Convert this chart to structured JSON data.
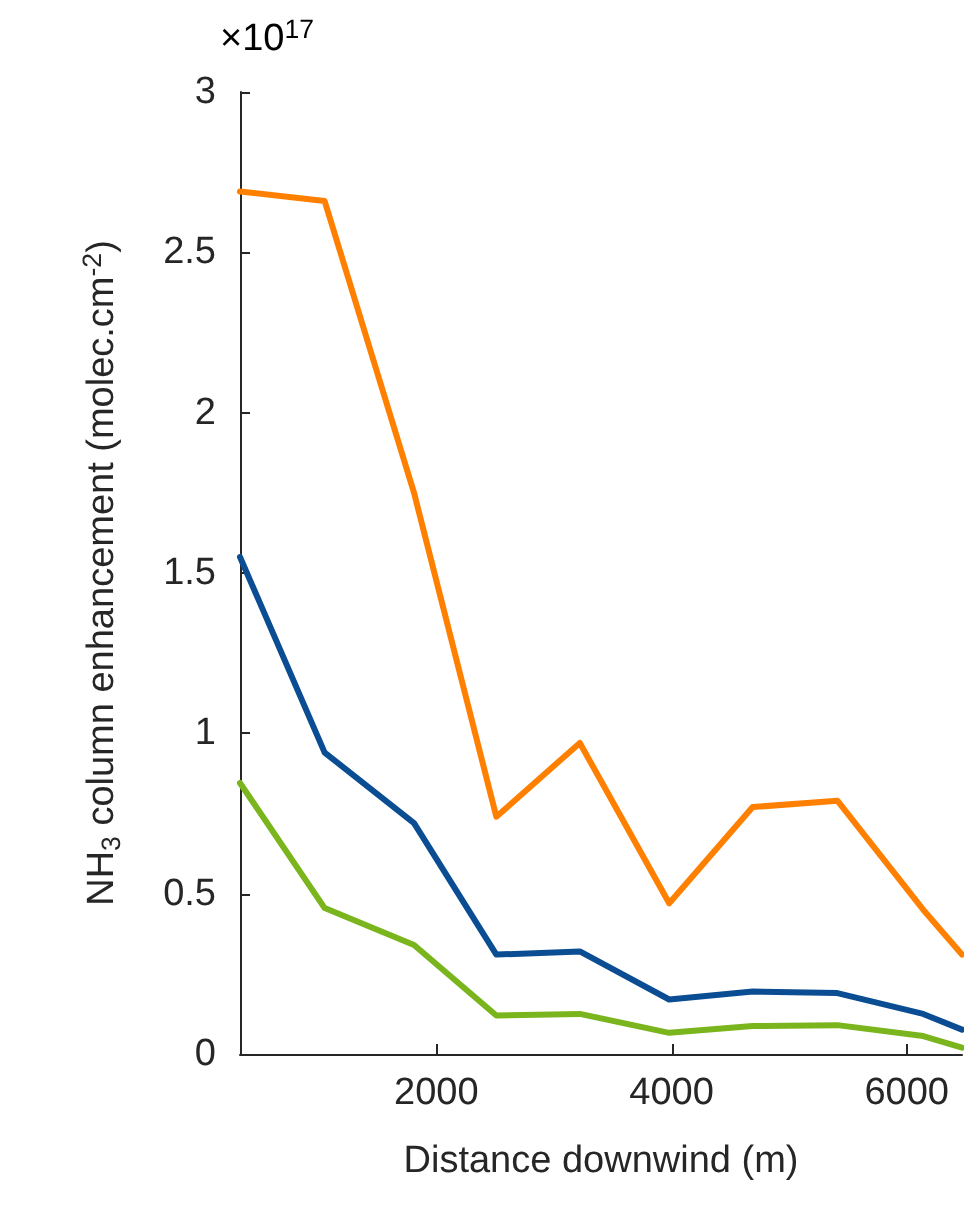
{
  "chart_data": {
    "type": "line",
    "xlabel": "Distance downwind (m)",
    "ylabel": "NH$_{3}$ column enhancement (molec.cm$^{-2}$)",
    "x": [
      330,
      1050,
      1810,
      2510,
      3220,
      3980,
      4690,
      5410,
      6140,
      6470
    ],
    "series": [
      {
        "color": "#ff8000",
        "values": [
          2.69,
          2.66,
          1.75,
          0.74,
          0.97,
          0.47,
          0.77,
          0.79,
          0.45,
          0.31
        ]
      },
      {
        "color": "#0b4d92",
        "values": [
          1.55,
          0.94,
          0.72,
          0.31,
          0.32,
          0.17,
          0.195,
          0.19,
          0.125,
          0.076
        ]
      },
      {
        "color": "#7ab51d",
        "values": [
          0.845,
          0.455,
          0.34,
          0.12,
          0.125,
          0.066,
          0.087,
          0.09,
          0.056,
          0.02
        ]
      }
    ],
    "xlim": [
      330,
      6470
    ],
    "xticks": [
      2000,
      4000,
      6000
    ],
    "ylim": [
      0,
      3
    ],
    "yticks": [
      0,
      0.5,
      1,
      1.5,
      2,
      2.5,
      3
    ],
    "annotations": [
      "×10$^{17}$"
    ],
    "grid": false,
    "marker": "none",
    "line_style": "solid"
  }
}
